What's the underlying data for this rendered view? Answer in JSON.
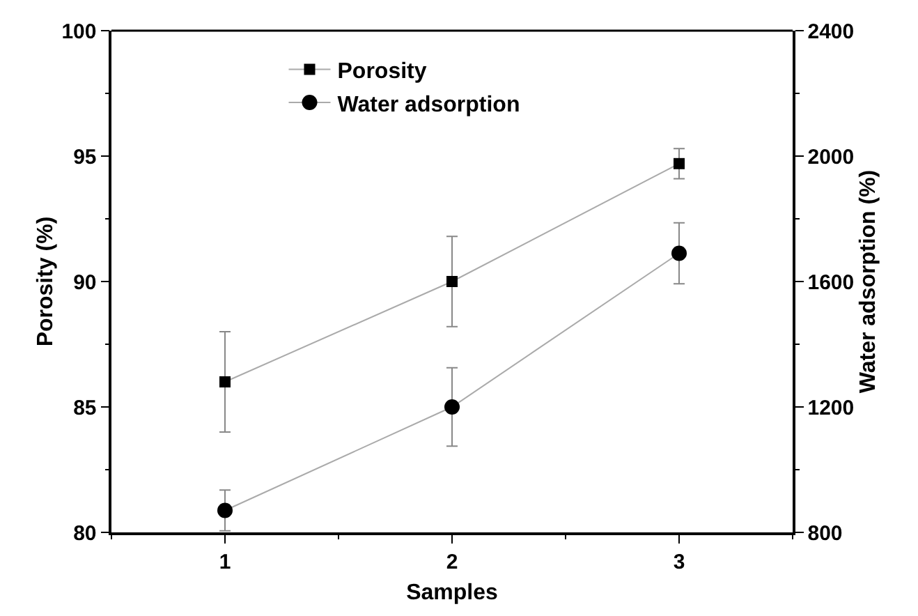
{
  "chart_data": {
    "type": "line",
    "xlabel": "Samples",
    "ylabel": "Porosity (%)",
    "y2label": "Water adsorption (%)",
    "x": [
      1,
      2,
      3
    ],
    "xlim": [
      0.5,
      3.5
    ],
    "xticks": [
      1,
      2,
      3
    ],
    "ylim": [
      80,
      100
    ],
    "yticks": [
      80,
      85,
      90,
      95,
      100
    ],
    "y2lim": [
      800,
      2400
    ],
    "y2ticks": [
      800,
      1200,
      1600,
      2000,
      2400
    ],
    "series": [
      {
        "name": "Porosity",
        "color": "#000000",
        "marker": "square",
        "values": [
          86,
          90,
          94.7
        ],
        "errors": [
          2,
          1.8,
          0.6
        ]
      },
      {
        "name": "Water adsorption",
        "color": "#000000",
        "marker": "circle",
        "axis": "y2",
        "values": [
          870,
          1200,
          1690
        ],
        "errors": [
          65,
          125,
          97
        ]
      }
    ],
    "grid": false,
    "legend": "top left"
  }
}
